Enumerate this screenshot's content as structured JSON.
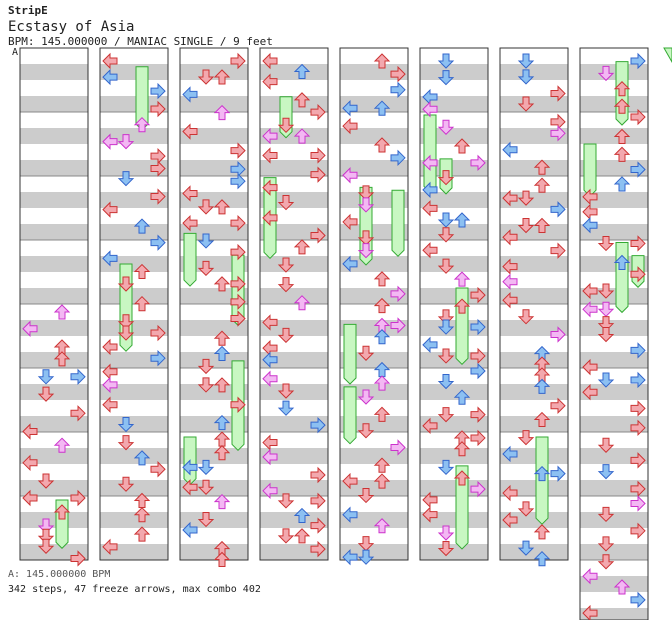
{
  "song": {
    "artist": "StripE",
    "title": "Ecstasy of Asia",
    "meta": "BPM: 145.000000 / MANIAC SINGLE / 9 feet",
    "bpm_marker": "A"
  },
  "footer": {
    "bpm_line": "A: 145.000000 BPM",
    "stats": "342 steps, 47 freeze arrows, max combo 402"
  },
  "colors": {
    "stripe": "#cccccc",
    "column_border": "#333333",
    "quarter_note": "#f3a8ae",
    "eighth_note": "#8cc0f2",
    "sixteenth_note": "#f3b8f3",
    "freeze": "#c8f7c2"
  }
}
